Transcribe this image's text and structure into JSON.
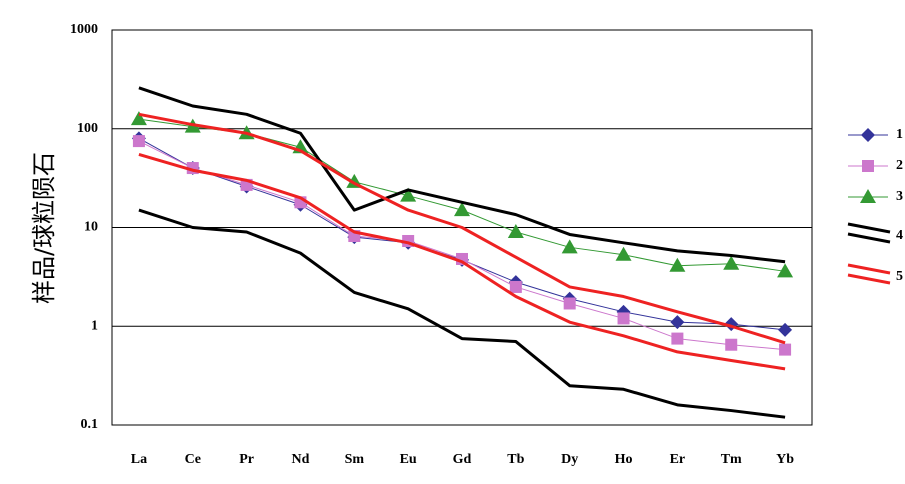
{
  "chart_data": {
    "type": "line",
    "y_label": "样品/球粒陨石",
    "log_scale": true,
    "grid": true,
    "categories": [
      "La",
      "Ce",
      "Pr",
      "Nd",
      "Sm",
      "Eu",
      "Gd",
      "Tb",
      "Dy",
      "Ho",
      "Er",
      "Tm",
      "Yb"
    ],
    "ylim": [
      0.1,
      1000
    ],
    "yticks": [
      0.1,
      1,
      10,
      100,
      1000
    ],
    "series": [
      {
        "name": "1",
        "color": "#33339a",
        "marker": "diamond",
        "values": [
          80,
          40,
          26,
          17,
          8,
          7,
          4.7,
          2.8,
          1.9,
          1.4,
          1.1,
          1.05,
          0.92
        ]
      },
      {
        "name": "2",
        "color": "#cc77cc",
        "marker": "square",
        "values": [
          75,
          40,
          27,
          18,
          8.2,
          7.3,
          4.8,
          2.5,
          1.7,
          1.2,
          0.75,
          0.65,
          0.58
        ]
      },
      {
        "name": "3",
        "color": "#339933",
        "marker": "triangle",
        "values": [
          125,
          105,
          90,
          65,
          29,
          21,
          15,
          9,
          6.3,
          5.3,
          4.1,
          4.3,
          3.6
        ]
      },
      {
        "name": "4",
        "color": "#000000",
        "values": [
          [
            260,
            170,
            140,
            90,
            15,
            24,
            18,
            13.5,
            8.5,
            7,
            5.8,
            5.2,
            4.5
          ],
          [
            15,
            10,
            9,
            5.5,
            2.2,
            1.5,
            0.75,
            0.7,
            0.25,
            0.23,
            0.16,
            0.14,
            0.12
          ]
        ]
      },
      {
        "name": "5",
        "color": "#ee2222",
        "values": [
          [
            140,
            110,
            90,
            60,
            28,
            15,
            10,
            5,
            2.5,
            2,
            1.4,
            1,
            0.68
          ],
          [
            55,
            38,
            30,
            20,
            9,
            7,
            4.5,
            2,
            1.1,
            0.8,
            0.55,
            0.45,
            0.37
          ]
        ]
      }
    ]
  }
}
